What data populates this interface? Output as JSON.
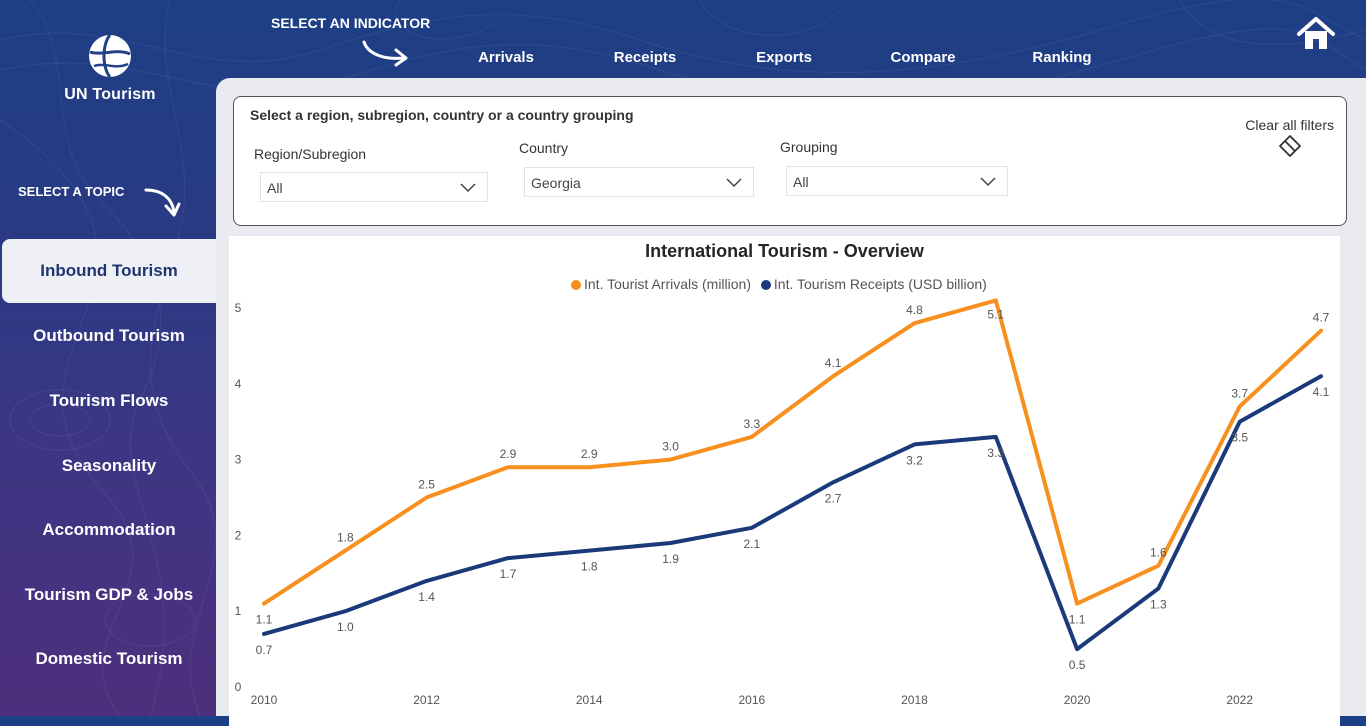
{
  "brand": {
    "name": "UN Tourism"
  },
  "labels": {
    "select_indicator": "SELECT AN INDICATOR",
    "select_topic": "SELECT A TOPIC"
  },
  "nav": {
    "items": [
      {
        "label": "Arrivals"
      },
      {
        "label": "Receipts"
      },
      {
        "label": "Exports"
      },
      {
        "label": "Compare"
      },
      {
        "label": "Ranking"
      }
    ]
  },
  "sidebar": {
    "items": [
      {
        "label": "Inbound Tourism",
        "active": true
      },
      {
        "label": "Outbound Tourism"
      },
      {
        "label": "Tourism Flows"
      },
      {
        "label": "Seasonality"
      },
      {
        "label": "Accommodation"
      },
      {
        "label": "Tourism GDP & Jobs"
      },
      {
        "label": "Domestic Tourism"
      }
    ]
  },
  "filters": {
    "title": "Select a region, subregion, country or a country grouping",
    "region": {
      "label": "Region/Subregion",
      "value": "All"
    },
    "country": {
      "label": "Country",
      "value": "Georgia"
    },
    "grouping": {
      "label": "Grouping",
      "value": "All"
    },
    "clear_label": "Clear all filters"
  },
  "colors": {
    "arrivals": "#f7901e",
    "receipts": "#1b3a7a",
    "accent": "#1f3670"
  },
  "chart_data": {
    "type": "line",
    "title": "International Tourism - Overview",
    "x": [
      2010,
      2011,
      2012,
      2013,
      2014,
      2015,
      2016,
      2017,
      2018,
      2019,
      2020,
      2021,
      2022,
      2023
    ],
    "x_tick_labels": [
      "2010",
      "2012",
      "2014",
      "2016",
      "2018",
      "2020",
      "2022"
    ],
    "ylim": [
      0,
      5
    ],
    "y_ticks": [
      0,
      1,
      2,
      3,
      4,
      5
    ],
    "grid": false,
    "legend_position": "top-center",
    "series": [
      {
        "name": "Int. Tourist Arrivals (million)",
        "values": [
          1.1,
          1.8,
          2.5,
          2.9,
          2.9,
          3.0,
          3.3,
          4.1,
          4.8,
          5.1,
          1.1,
          1.6,
          3.7,
          4.7
        ],
        "labels": [
          "1.1",
          "1.8",
          "2.5",
          "2.9",
          "2.9",
          "3.0",
          "3.3",
          "4.1",
          "4.8",
          "5.1",
          "1.1",
          "1.6",
          "3.7",
          "4.7"
        ]
      },
      {
        "name": "Int. Tourism Receipts (USD billion)",
        "values": [
          0.7,
          1.0,
          1.4,
          1.7,
          1.8,
          1.9,
          2.1,
          2.7,
          3.2,
          3.3,
          0.5,
          1.3,
          3.5,
          4.1
        ],
        "labels": [
          "0.7",
          "1.0",
          "1.4",
          "1.7",
          "1.8",
          "1.9",
          "2.1",
          "2.7",
          "3.2",
          "3.3",
          "0.5",
          "1.3",
          "3.5",
          "4.1"
        ]
      }
    ]
  }
}
